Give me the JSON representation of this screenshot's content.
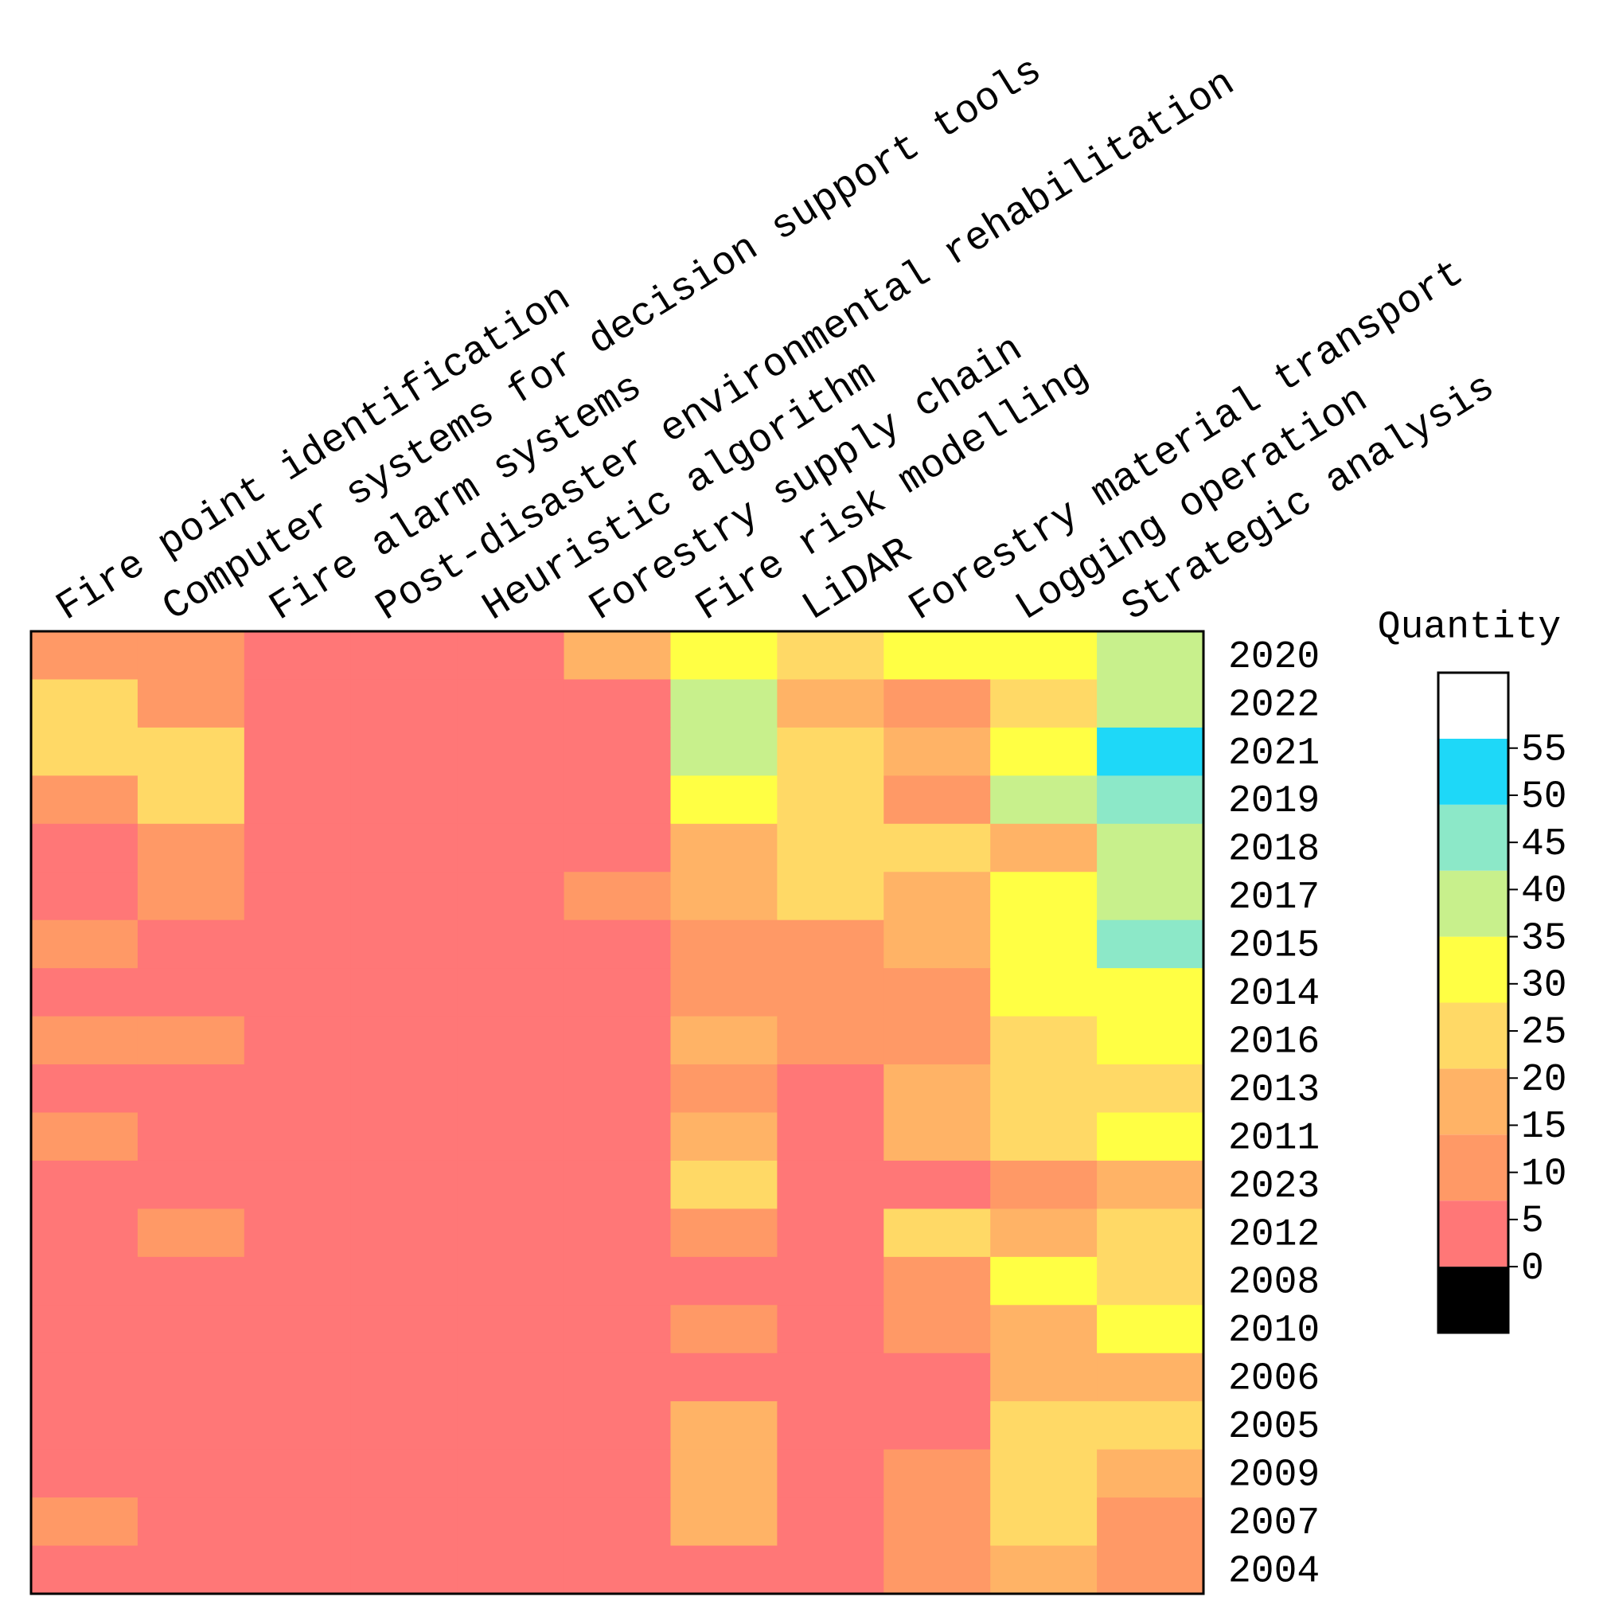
{
  "chart_data": {
    "type": "heatmap",
    "columns": [
      "Fire point identification",
      "Computer systems for decision support tools",
      "Fire alarm systems",
      "Post-disaster environmental rehabilitation",
      "Heuristic algorithm",
      "Forestry supply chain",
      "Fire risk modelling",
      "LiDAR",
      "Forestry material transport",
      "Logging operation",
      "Strategic analysis"
    ],
    "rows": [
      "2020",
      "2022",
      "2021",
      "2019",
      "2018",
      "2017",
      "2015",
      "2014",
      "2016",
      "2013",
      "2011",
      "2023",
      "2012",
      "2008",
      "2010",
      "2006",
      "2005",
      "2009",
      "2007",
      "2004"
    ],
    "z": [
      [
        10,
        10,
        3,
        3,
        3,
        17,
        31,
        24,
        31,
        31,
        38
      ],
      [
        24,
        10,
        3,
        3,
        3,
        3,
        38,
        17,
        10,
        24,
        38
      ],
      [
        24,
        24,
        3,
        3,
        3,
        3,
        38,
        24,
        17,
        31,
        52
      ],
      [
        10,
        24,
        3,
        3,
        3,
        3,
        31,
        24,
        10,
        38,
        45
      ],
      [
        3,
        10,
        3,
        3,
        3,
        3,
        17,
        24,
        24,
        17,
        38
      ],
      [
        3,
        10,
        3,
        3,
        3,
        10,
        17,
        24,
        17,
        31,
        38
      ],
      [
        10,
        3,
        3,
        3,
        3,
        3,
        10,
        10,
        17,
        31,
        45
      ],
      [
        3,
        3,
        3,
        3,
        3,
        3,
        10,
        10,
        10,
        31,
        31
      ],
      [
        10,
        10,
        3,
        3,
        3,
        3,
        17,
        10,
        10,
        24,
        31
      ],
      [
        3,
        3,
        3,
        3,
        3,
        3,
        10,
        3,
        17,
        24,
        24
      ],
      [
        10,
        3,
        3,
        3,
        3,
        3,
        17,
        3,
        17,
        24,
        31
      ],
      [
        3,
        3,
        3,
        3,
        3,
        3,
        24,
        3,
        3,
        10,
        17
      ],
      [
        3,
        10,
        3,
        3,
        3,
        3,
        10,
        3,
        24,
        17,
        24
      ],
      [
        3,
        3,
        3,
        3,
        3,
        3,
        3,
        3,
        10,
        31,
        24
      ],
      [
        3,
        3,
        3,
        3,
        3,
        3,
        10,
        3,
        10,
        17,
        31
      ],
      [
        3,
        3,
        3,
        3,
        3,
        3,
        3,
        3,
        3,
        17,
        17
      ],
      [
        3,
        3,
        3,
        3,
        3,
        3,
        17,
        3,
        3,
        24,
        24
      ],
      [
        3,
        3,
        3,
        3,
        3,
        3,
        17,
        3,
        10,
        24,
        17
      ],
      [
        10,
        3,
        3,
        3,
        3,
        3,
        17,
        3,
        10,
        24,
        10
      ],
      [
        3,
        3,
        3,
        3,
        3,
        3,
        3,
        3,
        10,
        17,
        10
      ]
    ],
    "colorbar_title": "Quantity",
    "clim": [
      -7,
      63
    ],
    "levels": [
      -7,
      0,
      7,
      14,
      21,
      28,
      35,
      42,
      49,
      56,
      63
    ],
    "colors": [
      "#000000",
      "#ff7777",
      "#ff9966",
      "#ffb366",
      "#ffd966",
      "#ffff44",
      "#c8f08c",
      "#8ce8c8",
      "#1ed8f8",
      "#ffffff"
    ],
    "cticks": [
      0,
      5,
      10,
      15,
      20,
      25,
      30,
      35,
      40,
      45,
      50,
      55
    ]
  }
}
